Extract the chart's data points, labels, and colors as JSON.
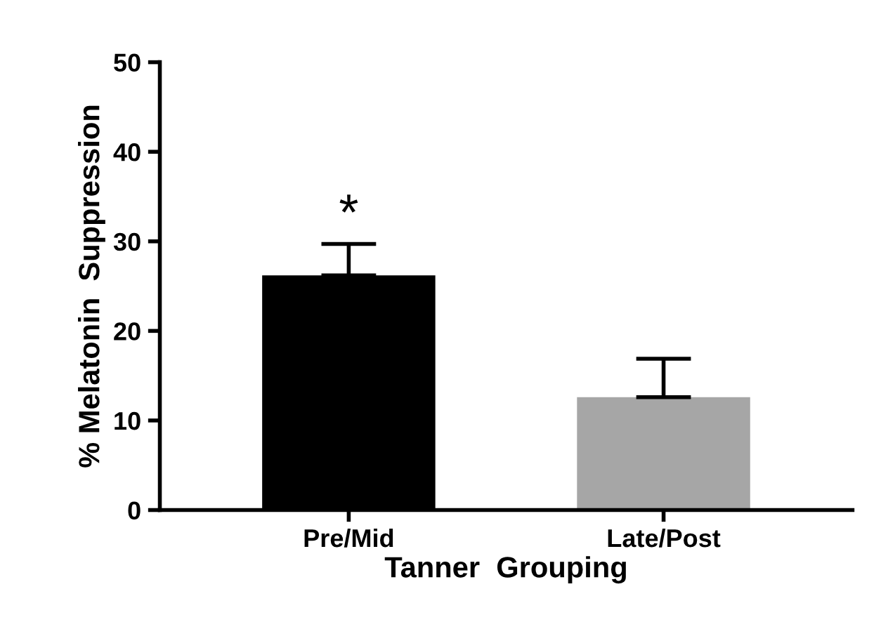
{
  "chart_data": {
    "type": "bar",
    "xlabel": "Tanner  Grouping",
    "ylabel": "% Melatonin  Suppression",
    "categories": [
      "Pre/Mid",
      "Late/Post"
    ],
    "values": [
      26.2,
      12.6
    ],
    "colors": [
      "#000000",
      "#a6a6a6"
    ],
    "errors": [
      [
        26.2,
        29.7
      ],
      [
        12.6,
        16.9
      ]
    ],
    "ylim": [
      0,
      50
    ],
    "yticks": [
      0,
      10,
      20,
      30,
      40,
      50
    ],
    "grid": false,
    "annotations": [
      {
        "text": "*",
        "x": "Pre/Mid",
        "y": 29.7
      }
    ]
  }
}
